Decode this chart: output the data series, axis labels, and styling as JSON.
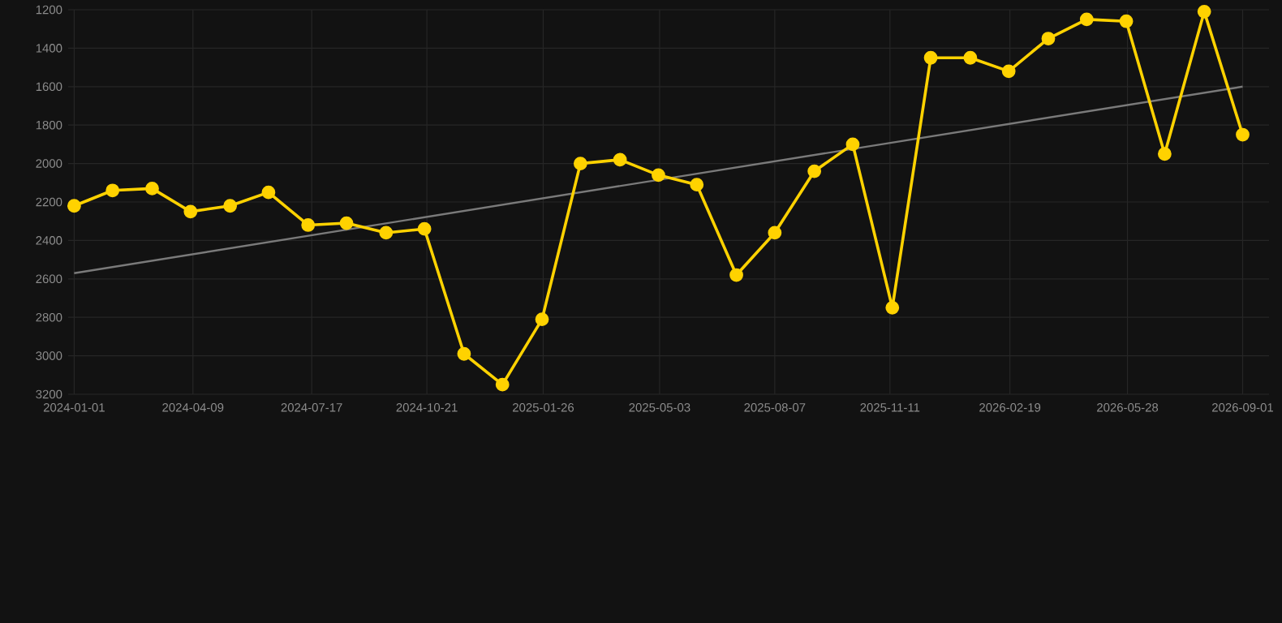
{
  "chart_data": {
    "type": "line",
    "x": [
      "2024-01-01",
      "2024-02-02",
      "2024-03-06",
      "2024-04-07",
      "2024-05-10",
      "2024-06-11",
      "2024-07-14",
      "2024-08-15",
      "2024-09-17",
      "2024-10-19",
      "2024-11-21",
      "2024-12-23",
      "2025-01-25",
      "2025-02-26",
      "2025-03-31",
      "2025-05-02",
      "2025-06-03",
      "2025-07-06",
      "2025-08-07",
      "2025-09-09",
      "2025-10-11",
      "2025-11-13",
      "2025-12-15",
      "2026-01-17",
      "2026-02-18",
      "2026-03-23",
      "2026-04-24",
      "2026-05-27",
      "2026-06-28",
      "2026-07-31",
      "2026-09-01"
    ],
    "series": [
      {
        "color": "#ffd200",
        "marker": "circle",
        "values": [
          2220,
          2140,
          2130,
          2250,
          2220,
          2150,
          2320,
          2310,
          2360,
          2340,
          2990,
          3150,
          2810,
          2000,
          1980,
          2060,
          2110,
          2580,
          2360,
          2040,
          1900,
          2750,
          1450,
          1450,
          1520,
          1350,
          1250,
          1260,
          1950,
          1210,
          1850
        ]
      },
      {
        "color": "#7a7a7a",
        "marker": "none",
        "x": [
          "2024-01-01",
          "2026-09-01"
        ],
        "values": [
          2570,
          1600
        ]
      }
    ],
    "xlim": [
      "2023-12-27",
      "2026-09-23"
    ],
    "xticks": [
      "2024-01-01",
      "2024-04-09",
      "2024-07-17",
      "2024-10-21",
      "2025-01-26",
      "2025-05-03",
      "2025-08-07",
      "2025-11-11",
      "2026-02-19",
      "2026-05-28",
      "2026-09-01"
    ],
    "ylim": [
      3200,
      1200
    ],
    "yticks": [
      1200,
      1400,
      1600,
      1800,
      2000,
      2200,
      2400,
      2600,
      2800,
      3000,
      3200
    ],
    "grid": true
  }
}
